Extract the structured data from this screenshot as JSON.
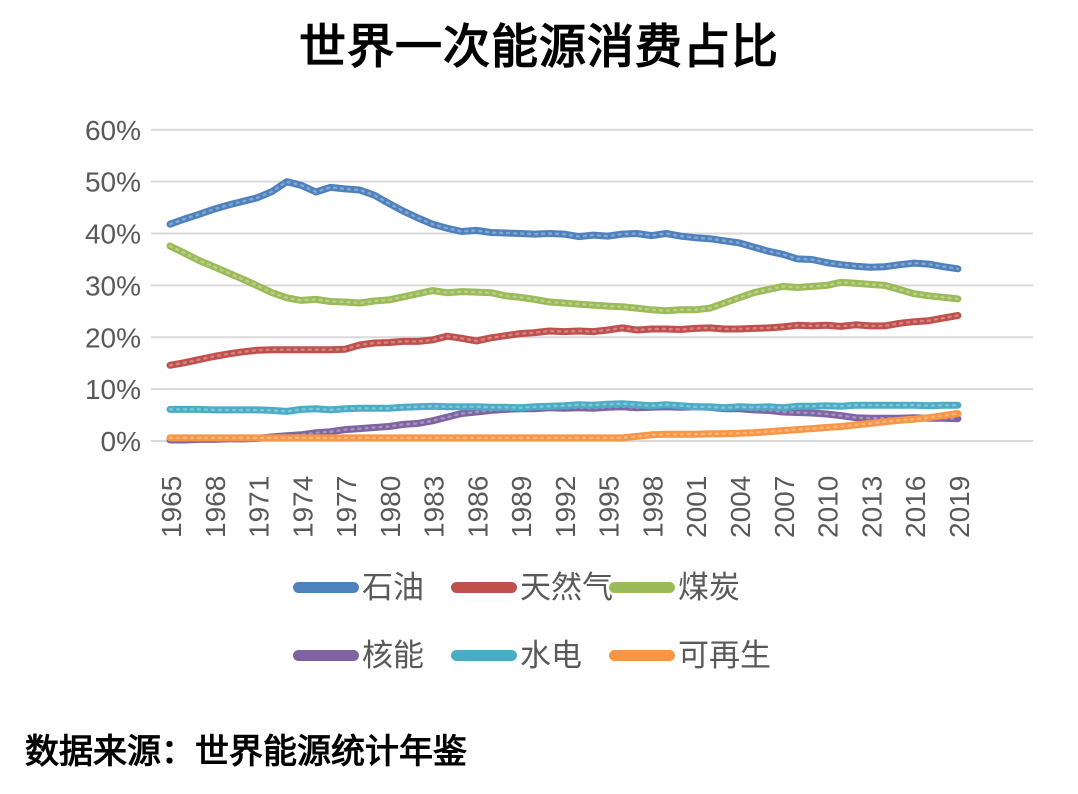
{
  "title": "世界一次能源消费占比",
  "source_note": "数据来源：世界能源统计年鉴",
  "colors": {
    "background": "#FFFFFF",
    "title_text": "#000000",
    "axis_text": "#595959",
    "legend_text": "#595959",
    "gridline": "#D9D9D9",
    "oil": "#4F81BD",
    "natural_gas": "#C0504D",
    "coal": "#9BBB59",
    "nuclear": "#8064A2",
    "hydro": "#4BACC6",
    "renewables": "#F79646"
  },
  "chart_data": {
    "type": "line",
    "title": "世界一次能源消费占比",
    "xlabel": "",
    "ylabel": "",
    "ylim": [
      0,
      60
    ],
    "grid": "horizontal",
    "legend_position": "bottom",
    "y_ticks": [
      {
        "value": 60,
        "label": "60%"
      },
      {
        "value": 50,
        "label": "50%"
      },
      {
        "value": 40,
        "label": "40%"
      },
      {
        "value": 30,
        "label": "30%"
      },
      {
        "value": 20,
        "label": "20%"
      },
      {
        "value": 10,
        "label": "10%"
      },
      {
        "value": 0,
        "label": "0%"
      }
    ],
    "x_tick_years": [
      1965,
      1968,
      1971,
      1974,
      1977,
      1980,
      1983,
      1986,
      1989,
      1992,
      1995,
      1998,
      2001,
      2004,
      2007,
      2010,
      2013,
      2016,
      2019
    ],
    "years": [
      1965,
      1966,
      1967,
      1968,
      1969,
      1970,
      1971,
      1972,
      1973,
      1974,
      1975,
      1976,
      1977,
      1978,
      1979,
      1980,
      1981,
      1982,
      1983,
      1984,
      1985,
      1986,
      1987,
      1988,
      1989,
      1990,
      1991,
      1992,
      1993,
      1994,
      1995,
      1996,
      1997,
      1998,
      1999,
      2000,
      2001,
      2002,
      2003,
      2004,
      2005,
      2006,
      2007,
      2008,
      2009,
      2010,
      2011,
      2012,
      2013,
      2014,
      2015,
      2016,
      2017,
      2018,
      2019
    ],
    "series": [
      {
        "key": "oil",
        "name": "石油",
        "color": "#4F81BD",
        "values": [
          41.8,
          42.8,
          43.7,
          44.7,
          45.5,
          46.2,
          46.9,
          48.1,
          50.0,
          49.3,
          48.0,
          48.9,
          48.6,
          48.4,
          47.4,
          45.8,
          44.3,
          43.0,
          41.8,
          41.0,
          40.4,
          40.6,
          40.2,
          40.1,
          40.0,
          39.9,
          40.0,
          39.9,
          39.4,
          39.7,
          39.5,
          39.9,
          40.0,
          39.6,
          40.0,
          39.5,
          39.2,
          39.0,
          38.6,
          38.2,
          37.4,
          36.6,
          36.0,
          35.1,
          35.0,
          34.4,
          34.0,
          33.7,
          33.5,
          33.6,
          34.0,
          34.3,
          34.1,
          33.6,
          33.2
        ]
      },
      {
        "key": "natural-gas",
        "name": "天然气",
        "color": "#C0504D",
        "values": [
          14.6,
          15.1,
          15.7,
          16.3,
          16.8,
          17.2,
          17.5,
          17.6,
          17.6,
          17.6,
          17.6,
          17.6,
          17.7,
          18.5,
          18.9,
          19.0,
          19.2,
          19.2,
          19.5,
          20.2,
          19.8,
          19.3,
          19.9,
          20.3,
          20.7,
          20.9,
          21.2,
          21.1,
          21.2,
          21.1,
          21.4,
          21.8,
          21.4,
          21.6,
          21.6,
          21.5,
          21.7,
          21.8,
          21.6,
          21.6,
          21.7,
          21.8,
          22.0,
          22.3,
          22.2,
          22.3,
          22.1,
          22.4,
          22.2,
          22.2,
          22.7,
          23.0,
          23.2,
          23.7,
          24.2
        ]
      },
      {
        "key": "coal",
        "name": "煤炭",
        "color": "#9BBB59",
        "values": [
          37.6,
          36.2,
          34.8,
          33.6,
          32.4,
          31.2,
          29.9,
          28.6,
          27.6,
          27.1,
          27.3,
          26.9,
          26.8,
          26.6,
          27.0,
          27.2,
          27.8,
          28.4,
          29.0,
          28.6,
          28.8,
          28.7,
          28.6,
          28.0,
          27.7,
          27.3,
          26.8,
          26.6,
          26.4,
          26.2,
          26.0,
          25.9,
          25.6,
          25.3,
          25.1,
          25.3,
          25.3,
          25.6,
          26.6,
          27.6,
          28.6,
          29.2,
          29.8,
          29.6,
          29.8,
          30.0,
          30.6,
          30.4,
          30.2,
          30.0,
          29.2,
          28.4,
          28.0,
          27.7,
          27.4
        ]
      },
      {
        "key": "nuclear",
        "name": "核能",
        "color": "#8064A2",
        "values": [
          0.2,
          0.2,
          0.3,
          0.3,
          0.4,
          0.4,
          0.5,
          0.8,
          1.0,
          1.2,
          1.6,
          1.8,
          2.2,
          2.4,
          2.6,
          2.8,
          3.2,
          3.4,
          3.9,
          4.6,
          5.3,
          5.6,
          5.9,
          6.1,
          6.2,
          6.2,
          6.4,
          6.3,
          6.4,
          6.3,
          6.5,
          6.6,
          6.4,
          6.5,
          6.6,
          6.5,
          6.6,
          6.5,
          6.2,
          6.2,
          6.0,
          5.9,
          5.6,
          5.5,
          5.4,
          5.2,
          4.9,
          4.5,
          4.4,
          4.4,
          4.4,
          4.5,
          4.4,
          4.4,
          4.3
        ]
      },
      {
        "key": "hydro",
        "name": "水电",
        "color": "#4BACC6",
        "values": [
          6.1,
          6.1,
          6.1,
          6.0,
          6.0,
          6.0,
          6.0,
          5.9,
          5.7,
          6.1,
          6.2,
          6.0,
          6.2,
          6.3,
          6.3,
          6.3,
          6.5,
          6.6,
          6.7,
          6.6,
          6.6,
          6.6,
          6.5,
          6.5,
          6.4,
          6.6,
          6.7,
          6.8,
          7.0,
          6.9,
          7.1,
          7.2,
          7.0,
          6.8,
          7.0,
          6.8,
          6.6,
          6.6,
          6.4,
          6.6,
          6.5,
          6.6,
          6.4,
          6.7,
          6.7,
          6.8,
          6.7,
          6.9,
          6.9,
          6.9,
          6.9,
          6.9,
          6.8,
          6.9,
          6.9
        ]
      },
      {
        "key": "renewables",
        "name": "可再生",
        "color": "#F79646",
        "values": [
          0.6,
          0.6,
          0.6,
          0.6,
          0.6,
          0.6,
          0.6,
          0.6,
          0.6,
          0.6,
          0.6,
          0.6,
          0.6,
          0.6,
          0.6,
          0.6,
          0.6,
          0.6,
          0.6,
          0.6,
          0.6,
          0.6,
          0.6,
          0.6,
          0.6,
          0.6,
          0.6,
          0.6,
          0.6,
          0.6,
          0.6,
          0.6,
          0.9,
          1.2,
          1.3,
          1.3,
          1.3,
          1.4,
          1.4,
          1.5,
          1.6,
          1.8,
          2.0,
          2.2,
          2.4,
          2.6,
          2.8,
          3.1,
          3.4,
          3.7,
          4.0,
          4.2,
          4.5,
          4.9,
          5.3
        ]
      }
    ]
  }
}
